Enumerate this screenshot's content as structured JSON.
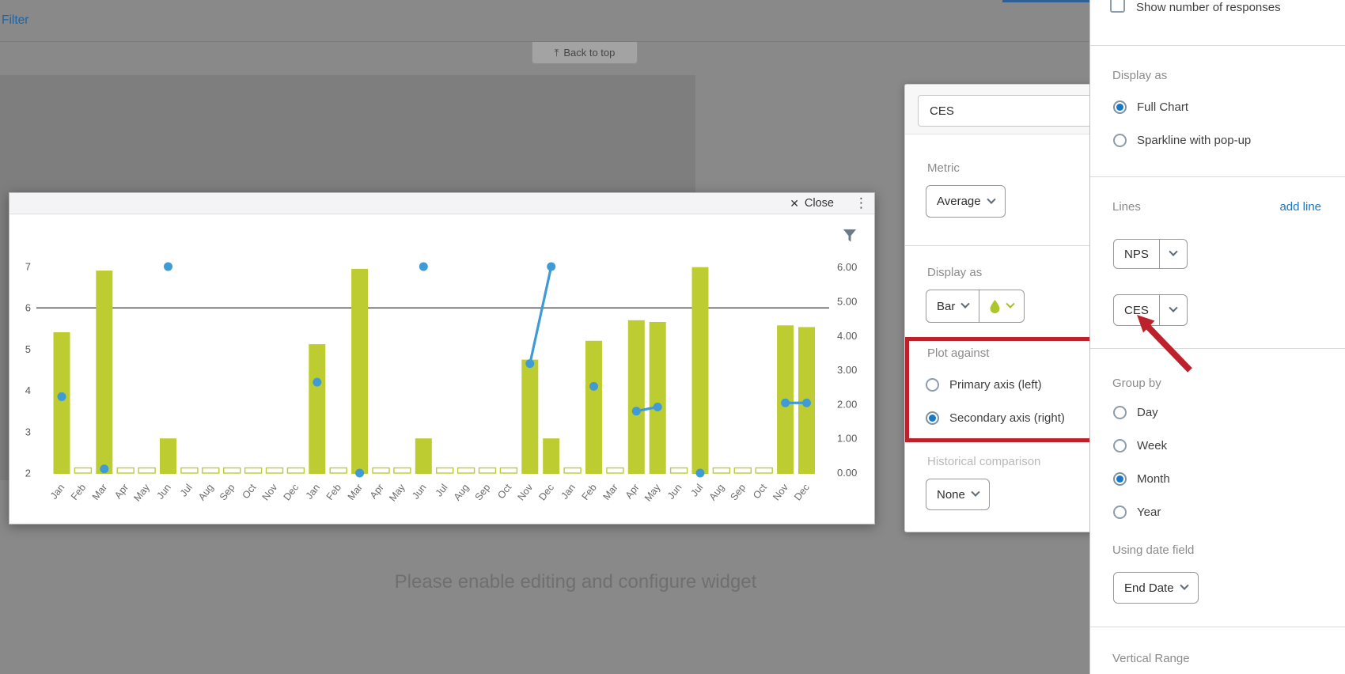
{
  "top_bar": {
    "filter_label": "Filter",
    "back_to_top_label": "Back to top"
  },
  "overlay_message": "Please enable editing and configure widget",
  "modal": {
    "close_label": "Close"
  },
  "line_settings_popup": {
    "title_value": "CES",
    "metric_label": "Metric",
    "metric_value": "Average",
    "display_as_label": "Display as",
    "display_as_value": "Bar",
    "plot_against": {
      "label": "Plot against",
      "options": [
        "Primary axis (left)",
        "Secondary axis (right)"
      ],
      "selected": "Secondary axis (right)"
    },
    "historical_label": "Historical comparison",
    "historical_value": "None"
  },
  "sidebar": {
    "show_responses_label": "Show number of responses",
    "display_as": {
      "label": "Display as",
      "options": [
        "Full Chart",
        "Sparkline with pop-up"
      ],
      "selected": "Full Chart"
    },
    "lines": {
      "label": "Lines",
      "add_label": "add line",
      "items": [
        "NPS",
        "CES"
      ]
    },
    "group_by": {
      "label": "Group by",
      "options": [
        "Day",
        "Week",
        "Month",
        "Year"
      ],
      "selected": "Month"
    },
    "date_field_label": "Using date field",
    "date_field_value": "End Date",
    "vertical_range_label": "Vertical Range"
  },
  "colors": {
    "bar_green": "#bdcc31",
    "line_blue": "#3e9bd5",
    "accent_blue": "#1878c8",
    "highlight_red": "#bd222c"
  },
  "chart_data": {
    "type": "bar",
    "title": "",
    "grid": false,
    "legend": false,
    "categories": [
      "Jan",
      "Feb",
      "Mar",
      "Apr",
      "May",
      "Jun",
      "Jul",
      "Aug",
      "Sep",
      "Oct",
      "Nov",
      "Dec",
      "Jan",
      "Feb",
      "Mar",
      "Apr",
      "May",
      "Jun",
      "Jul",
      "Aug",
      "Sep",
      "Oct",
      "Nov",
      "Dec",
      "Jan",
      "Feb",
      "Mar",
      "Apr",
      "May",
      "Jun",
      "Jul",
      "Aug",
      "Sep",
      "Oct",
      "Nov",
      "Dec"
    ],
    "primary_axis": {
      "side": "left",
      "range": [
        2,
        7
      ],
      "ticks": [
        2,
        3,
        4,
        5,
        6,
        7
      ]
    },
    "secondary_axis": {
      "side": "right",
      "range": [
        0,
        6
      ],
      "ticks": [
        "0.00",
        "1.00",
        "2.00",
        "3.00",
        "4.00",
        "5.00",
        "6.00"
      ]
    },
    "reference_line": {
      "axis": "primary",
      "value": 6
    },
    "series": [
      {
        "name": "CES",
        "type": "bar",
        "axis": "secondary",
        "color": "#bdcc31",
        "values": [
          4.1,
          null,
          5.9,
          null,
          null,
          1,
          null,
          null,
          null,
          null,
          null,
          null,
          3.75,
          null,
          5.95,
          null,
          null,
          1,
          null,
          null,
          null,
          null,
          3.3,
          1,
          null,
          3.85,
          null,
          4.45,
          4.4,
          null,
          6,
          null,
          null,
          null,
          4.3,
          4.25
        ]
      },
      {
        "name": "NPS",
        "type": "point",
        "axis": "primary",
        "color": "#3e9bd5",
        "values": [
          3.85,
          null,
          2.1,
          null,
          null,
          7,
          null,
          null,
          null,
          null,
          null,
          null,
          4.2,
          null,
          2,
          null,
          null,
          7,
          null,
          null,
          null,
          null,
          4.65,
          7,
          null,
          4.1,
          null,
          3.5,
          3.6,
          null,
          2,
          null,
          null,
          null,
          3.7,
          3.7
        ],
        "connected_segments": [
          [
            22,
            23
          ],
          [
            27,
            28
          ],
          [
            34,
            35
          ]
        ]
      }
    ]
  }
}
